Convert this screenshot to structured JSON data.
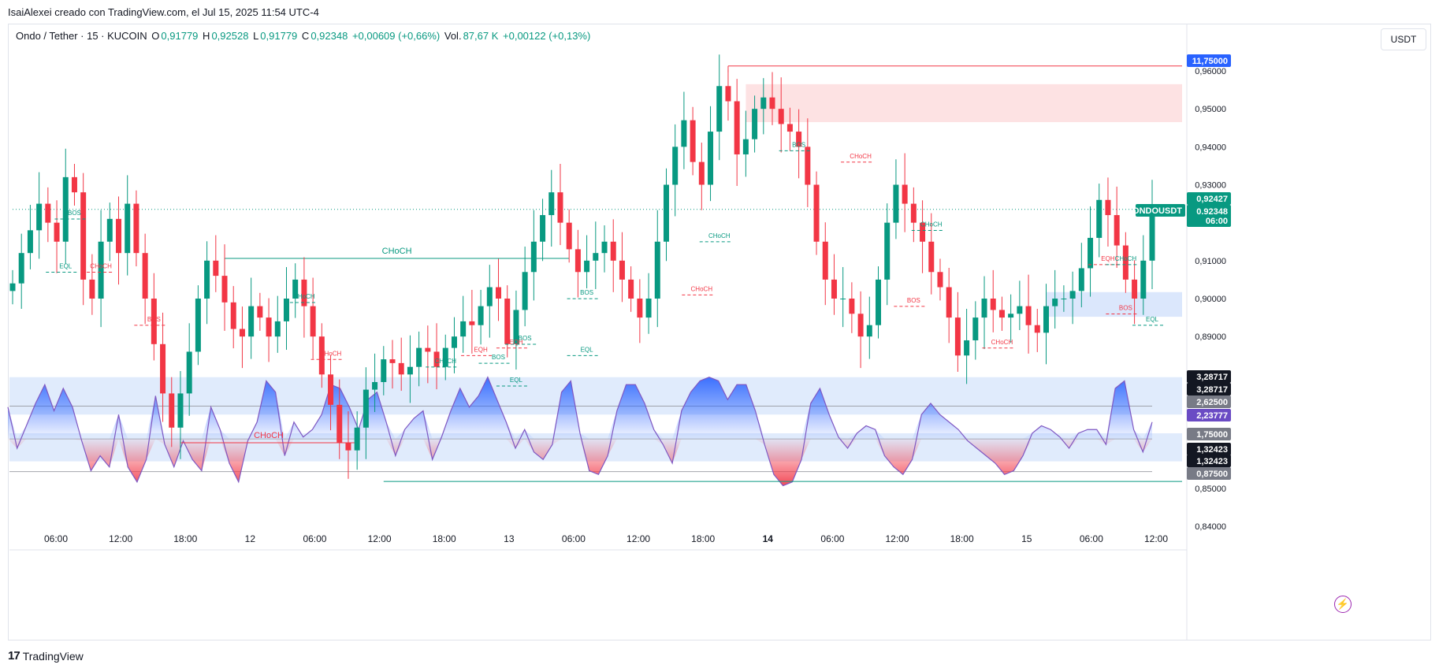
{
  "header": {
    "credit": "IsaiAlexei creado con TradingView.com, el Jul 15, 2025 11:54 UTC-4"
  },
  "legend": {
    "symbol": "Ondo / Tether · 15 · KUCOIN",
    "o_label": "O",
    "o_value": "0,91779",
    "h_label": "H",
    "h_value": "0,92528",
    "l_label": "L",
    "l_value": "0,91779",
    "c_label": "C",
    "c_value": "0,92348",
    "change": "+0,00609 (+0,66%)",
    "vol_label": "Vol.",
    "vol_value": "87,67 K",
    "vol_change": "+0,00122 (+0,13%)"
  },
  "currency_button": "USDT",
  "footer": {
    "logo_mark": "17",
    "logo_text": "TradingView"
  },
  "colors": {
    "up": "#089981",
    "down": "#f23645",
    "supply_zone": "#fde2e3",
    "demand_zone": "#dbe7fc",
    "osc_line": "#7e57c2",
    "osc_pos": "#2962ff",
    "osc_neg": "#f23645",
    "blue_badge": "#2962ff",
    "purple_badge": "#6a4bc4",
    "gray_badge": "#787b86",
    "black_badge": "#131722"
  },
  "chart_data": {
    "type": "candlestick",
    "symbol": "ONDOUSDT",
    "price_axis": {
      "ticks": [
        "0,96000",
        "0,95000",
        "0,94000",
        "0,93000",
        "0,91000",
        "0,90000",
        "0,89000",
        "0,85000",
        "0,84000"
      ],
      "range": [
        0.84,
        0.963
      ]
    },
    "time_axis": {
      "ticks": [
        "06:00",
        "12:00",
        "18:00",
        "12",
        "06:00",
        "12:00",
        "18:00",
        "13",
        "06:00",
        "12:00",
        "18:00",
        "14",
        "06:00",
        "12:00",
        "18:00",
        "15",
        "06:00",
        "12:00"
      ],
      "bold_ticks": [
        "14"
      ]
    },
    "price_badges": [
      {
        "text": "11,75000",
        "kind": "blue"
      },
      {
        "text": "0,92427",
        "kind": "green"
      },
      {
        "text": "ONDOUSDT",
        "kind": "green"
      },
      {
        "text": "0,92348",
        "kind": "green"
      },
      {
        "text": "06:00",
        "kind": "green"
      }
    ],
    "oscillator_badges": [
      {
        "text": "3,28717",
        "kind": "black"
      },
      {
        "text": "3,28717",
        "kind": "black"
      },
      {
        "text": "2,62500",
        "kind": "gray"
      },
      {
        "text": "2,23777",
        "kind": "purple"
      },
      {
        "text": "1,75000",
        "kind": "gray"
      },
      {
        "text": "1,32423",
        "kind": "black"
      },
      {
        "text": "1,32423",
        "kind": "black"
      },
      {
        "text": "0,87500",
        "kind": "gray"
      }
    ],
    "close_path": [
      0.904,
      0.912,
      0.918,
      0.925,
      0.92,
      0.915,
      0.932,
      0.928,
      0.905,
      0.9,
      0.915,
      0.921,
      0.912,
      0.925,
      0.912,
      0.9,
      0.888,
      0.875,
      0.866,
      0.875,
      0.886,
      0.9,
      0.91,
      0.906,
      0.899,
      0.892,
      0.89,
      0.898,
      0.895,
      0.89,
      0.894,
      0.9,
      0.905,
      0.898,
      0.89,
      0.88,
      0.872,
      0.862,
      0.86,
      0.866,
      0.876,
      0.878,
      0.884,
      0.883,
      0.88,
      0.882,
      0.887,
      0.886,
      0.882,
      0.887,
      0.89,
      0.894,
      0.893,
      0.898,
      0.903,
      0.9,
      0.888,
      0.897,
      0.907,
      0.915,
      0.922,
      0.928,
      0.92,
      0.913,
      0.907,
      0.91,
      0.912,
      0.915,
      0.91,
      0.905,
      0.9,
      0.895,
      0.9,
      0.915,
      0.93,
      0.94,
      0.947,
      0.936,
      0.93,
      0.944,
      0.956,
      0.952,
      0.938,
      0.942,
      0.95,
      0.953,
      0.95,
      0.946,
      0.944,
      0.94,
      0.93,
      0.915,
      0.905,
      0.9,
      0.9,
      0.896,
      0.89,
      0.893,
      0.905,
      0.92,
      0.93,
      0.925,
      0.92,
      0.915,
      0.907,
      0.903,
      0.895,
      0.885,
      0.889,
      0.895,
      0.9,
      0.897,
      0.895,
      0.896,
      0.898,
      0.893,
      0.891,
      0.898,
      0.9,
      0.9,
      0.902,
      0.908,
      0.916,
      0.926,
      0.922,
      0.914,
      0.905,
      0.9,
      0.91,
      0.923
    ],
    "supply_zone": {
      "from_index": 83,
      "to_index": "end",
      "price_top": 0.9565,
      "price_bottom": 0.9465
    },
    "demand_zone": {
      "from_index": 117,
      "to_index": "end",
      "price_top": 0.9017,
      "price_bottom": 0.8952
    },
    "levels": [
      {
        "type": "resistance",
        "price": 0.9613,
        "from_index": 81,
        "color": "#f23645"
      },
      {
        "type": "current",
        "price": 0.9235,
        "from_index": 0,
        "color": "#089981",
        "style": "dotted"
      },
      {
        "type": "support",
        "price": 0.8518,
        "from_index": 42,
        "color": "#089981"
      },
      {
        "type": "choch",
        "label": "CHoCH",
        "price": 0.9106,
        "from_index": 24,
        "to_index": 63,
        "color": "#089981"
      },
      {
        "type": "choch",
        "label": "CHoCH",
        "price": 0.862,
        "from_index": 19,
        "to_index": 39,
        "color": "#f23645"
      }
    ],
    "structure_labels": [
      {
        "text": "BOS",
        "color": "#089981",
        "index": 7,
        "price": 0.922
      },
      {
        "text": "EQL",
        "color": "#089981",
        "index": 6,
        "price": 0.908
      },
      {
        "text": "CHoCH",
        "color": "#f23645",
        "index": 10,
        "price": 0.908
      },
      {
        "text": "BOS",
        "color": "#f23645",
        "index": 16,
        "price": 0.894
      },
      {
        "text": "CHoCH",
        "color": "#089981",
        "index": 33,
        "price": 0.9
      },
      {
        "text": "CHoCH",
        "color": "#f23645",
        "index": 36,
        "price": 0.885
      },
      {
        "text": "CHoCH",
        "color": "#089981",
        "index": 49,
        "price": 0.883
      },
      {
        "text": "EQH",
        "color": "#f23645",
        "index": 53,
        "price": 0.886
      },
      {
        "text": "BOS",
        "color": "#089981",
        "index": 55,
        "price": 0.884
      },
      {
        "text": "EQL",
        "color": "#089981",
        "index": 57,
        "price": 0.878
      },
      {
        "text": "BOS",
        "color": "#089981",
        "index": 58,
        "price": 0.889
      },
      {
        "text": "EQH",
        "color": "#f23645",
        "index": 57,
        "price": 0.888
      },
      {
        "text": "BOS",
        "color": "#089981",
        "index": 65,
        "price": 0.901
      },
      {
        "text": "EQL",
        "color": "#089981",
        "index": 65,
        "price": 0.886
      },
      {
        "text": "CHoCH",
        "color": "#089981",
        "index": 80,
        "price": 0.916
      },
      {
        "text": "CHoCH",
        "color": "#f23645",
        "index": 78,
        "price": 0.902
      },
      {
        "text": "BOS",
        "color": "#089981",
        "index": 89,
        "price": 0.94
      },
      {
        "text": "CHoCH",
        "color": "#f23645",
        "index": 96,
        "price": 0.937
      },
      {
        "text": "CHoCH",
        "color": "#089981",
        "index": 104,
        "price": 0.919
      },
      {
        "text": "BOS",
        "color": "#f23645",
        "index": 102,
        "price": 0.899
      },
      {
        "text": "CHoCH",
        "color": "#f23645",
        "index": 112,
        "price": 0.888
      },
      {
        "text": "EQH",
        "color": "#f23645",
        "index": 124,
        "price": 0.91
      },
      {
        "text": "CHoCH",
        "color": "#089981",
        "index": 126,
        "price": 0.91
      },
      {
        "text": "BOS",
        "color": "#f23645",
        "index": 126,
        "price": 0.897
      },
      {
        "text": "EQL",
        "color": "#089981",
        "index": 129,
        "price": 0.894
      }
    ],
    "oscillator": {
      "band_upper_top": 3.4,
      "band_upper_bottom": 2.4,
      "band_lower_top": 1.9,
      "band_lower_bottom": 1.15,
      "lines": [
        2.625,
        1.75,
        0.875
      ],
      "range": [
        0.3,
        3.5
      ],
      "values": [
        2.6,
        1.5,
        2.1,
        2.7,
        3.2,
        2.5,
        3.1,
        2.6,
        1.7,
        0.9,
        1.3,
        1.0,
        2.4,
        1.0,
        0.6,
        1.2,
        2.9,
        1.6,
        1.0,
        1.7,
        1.2,
        0.9,
        2.6,
        2.0,
        1.1,
        0.6,
        1.7,
        2.2,
        3.3,
        3.0,
        1.3,
        2.2,
        1.8,
        2.0,
        2.4,
        3.2,
        3.1,
        2.6,
        2.0,
        2.8,
        3.0,
        2.2,
        1.3,
        2.0,
        2.3,
        2.5,
        1.2,
        1.8,
        2.5,
        3.1,
        2.6,
        2.9,
        3.4,
        2.8,
        2.2,
        1.5,
        2.0,
        1.4,
        1.2,
        1.6,
        3.0,
        3.3,
        1.9,
        0.9,
        0.8,
        1.3,
        2.5,
        3.2,
        3.2,
        2.7,
        2.0,
        1.6,
        1.1,
        2.5,
        3.0,
        3.3,
        3.4,
        3.3,
        2.8,
        3.2,
        3.2,
        2.5,
        1.6,
        0.8,
        0.5,
        0.6,
        1.2,
        2.7,
        3.1,
        2.4,
        1.8,
        1.5,
        1.9,
        2.1,
        2.0,
        1.3,
        1.0,
        0.8,
        1.2,
        2.4,
        2.7,
        2.4,
        2.2,
        2.0,
        1.7,
        1.5,
        1.3,
        1.1,
        0.8,
        0.9,
        1.3,
        1.9,
        2.1,
        2.0,
        1.8,
        1.5,
        1.9,
        2.0,
        2.0,
        1.6,
        3.1,
        3.3,
        2.0,
        1.4,
        2.2
      ]
    }
  }
}
